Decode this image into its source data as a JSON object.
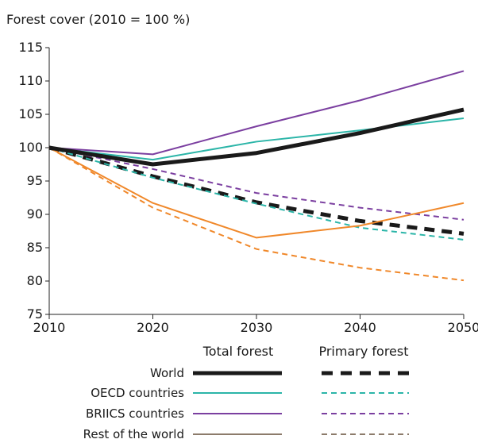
{
  "chart_data": {
    "type": "line",
    "title": "Forest cover (2010 = 100 %)",
    "xlabel": "",
    "ylabel": "",
    "x": [
      2010,
      2020,
      2030,
      2040,
      2050
    ],
    "xlim": [
      2010,
      2050
    ],
    "ylim": [
      75,
      115
    ],
    "xticks": [
      "2010",
      "2020",
      "2030",
      "2040",
      "2050"
    ],
    "yticks": [
      "75",
      "80",
      "85",
      "90",
      "95",
      "100",
      "105",
      "110",
      "115"
    ],
    "grid": false,
    "legend": {
      "placement": "bottom",
      "column_headers": [
        "Total forest",
        "Primary forest"
      ],
      "row_labels": [
        "World",
        "OECD countries",
        "BRIICS countries",
        "Rest of the world"
      ]
    },
    "colors": {
      "World": "#1a1a1a",
      "OECD countries": "#2bb5a8",
      "BRIICS countries": "#7b3fa0",
      "Rest of the world": "#f0882a",
      "Rest of the world legend swatch": "#8c7b6b"
    },
    "series": [
      {
        "group": "World",
        "kind": "Total forest",
        "style": "solid",
        "values": [
          100,
          97.5,
          99.2,
          102.2,
          105.7
        ]
      },
      {
        "group": "World",
        "kind": "Primary forest",
        "style": "dashed",
        "values": [
          100,
          95.7,
          91.8,
          89.0,
          87.1
        ]
      },
      {
        "group": "OECD countries",
        "kind": "Total forest",
        "style": "solid",
        "values": [
          100,
          98.2,
          100.9,
          102.6,
          104.4
        ]
      },
      {
        "group": "OECD countries",
        "kind": "Primary forest",
        "style": "dashed",
        "values": [
          100,
          95.5,
          91.6,
          88.0,
          86.2
        ]
      },
      {
        "group": "BRIICS countries",
        "kind": "Total forest",
        "style": "solid",
        "values": [
          100,
          99.0,
          103.2,
          107.1,
          111.5
        ]
      },
      {
        "group": "BRIICS countries",
        "kind": "Primary forest",
        "style": "dashed",
        "values": [
          100,
          96.8,
          93.2,
          91.0,
          89.2
        ]
      },
      {
        "group": "Rest of the world",
        "kind": "Total forest",
        "style": "solid",
        "values": [
          100,
          91.7,
          86.5,
          88.3,
          91.7
        ]
      },
      {
        "group": "Rest of the world",
        "kind": "Primary forest",
        "style": "dashed",
        "values": [
          100,
          91.0,
          84.8,
          82.0,
          80.1
        ]
      }
    ]
  }
}
